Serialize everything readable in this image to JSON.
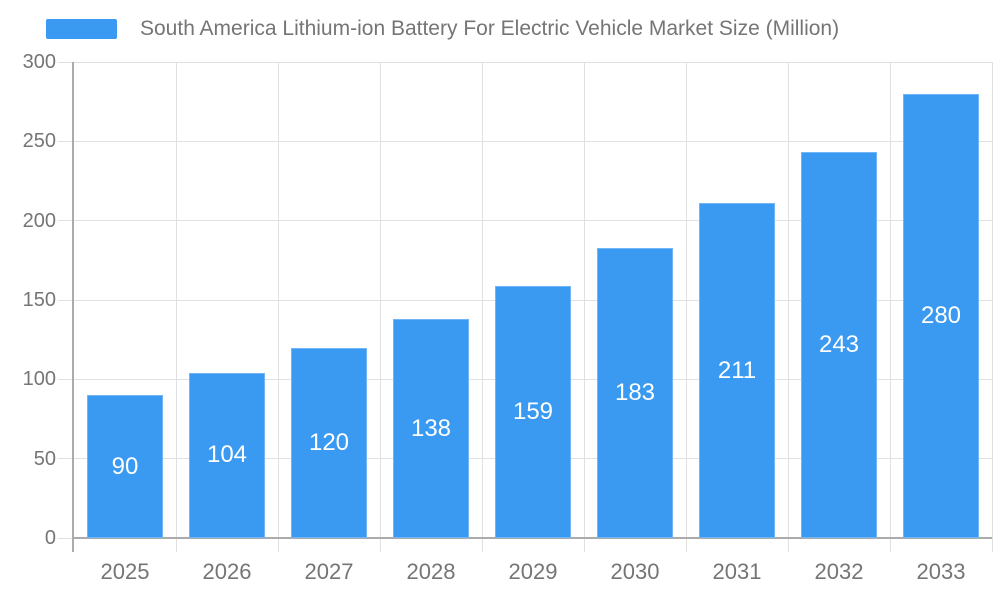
{
  "chart_data": {
    "type": "bar",
    "title": "South America Lithium-ion Battery For Electric Vehicle Market Size (Million)",
    "series": [
      {
        "name": "South America Lithium-ion Battery For Electric Vehicle Market Size (Million)",
        "values": [
          90,
          104,
          120,
          138,
          159,
          183,
          211,
          243,
          280
        ]
      }
    ],
    "categories": [
      "2025",
      "2026",
      "2027",
      "2028",
      "2029",
      "2030",
      "2031",
      "2032",
      "2033"
    ],
    "xlabel": "",
    "ylabel": "",
    "ylim": [
      0,
      300
    ],
    "ytick_step": 50,
    "ytick_labels": [
      "0",
      "50",
      "100",
      "150",
      "200",
      "250",
      "300"
    ],
    "grid": "on",
    "legend_position": "top-left",
    "colors": {
      "bar_fill": "#3A99F1",
      "value_label": "#FFFFFF",
      "axis_text": "#757575",
      "gridline": "#E0E0E0",
      "axis_line": "#ABABAB",
      "background": "#FFFFFF"
    }
  }
}
